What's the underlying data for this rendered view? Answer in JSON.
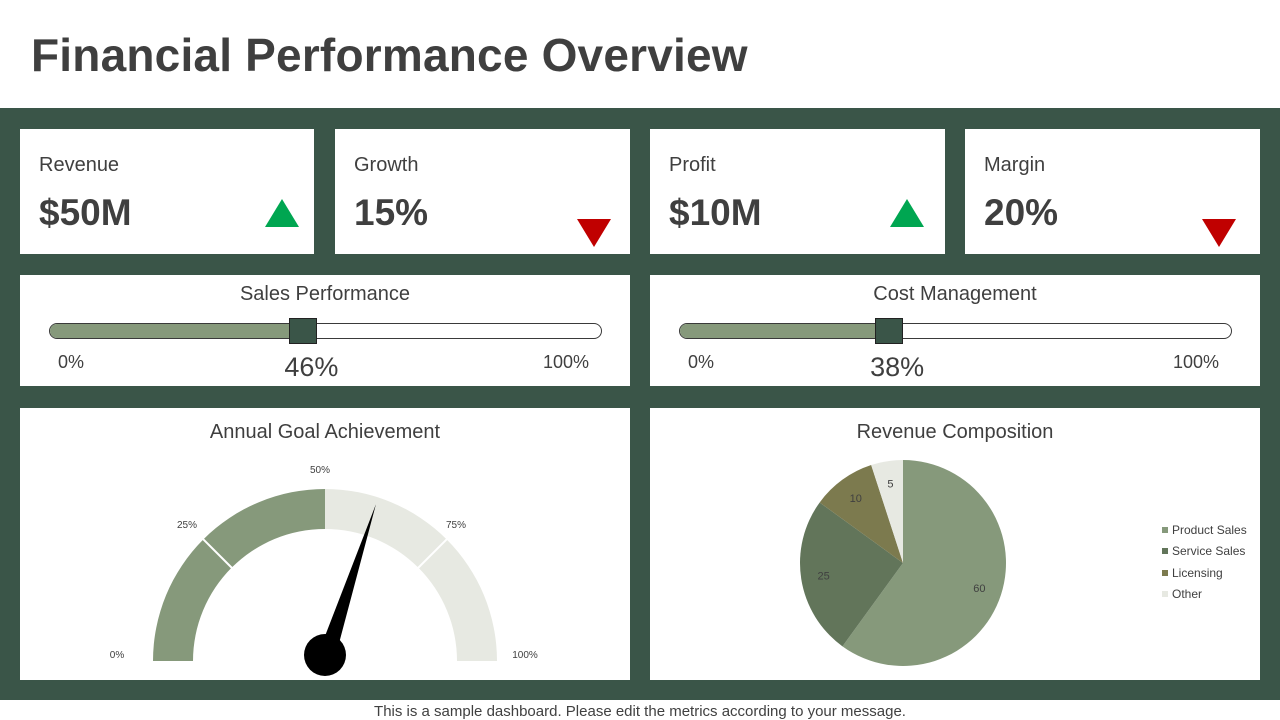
{
  "title": "Financial Performance Overview",
  "kpis": [
    {
      "label": "Revenue",
      "value": "$50M",
      "trend": "up",
      "trend_icon": "triangle-up-icon",
      "trend_color": "#00a651"
    },
    {
      "label": "Growth",
      "value": "15%",
      "trend": "down",
      "trend_icon": "triangle-down-icon",
      "trend_color": "#c00000"
    },
    {
      "label": "Profit",
      "value": "$10M",
      "trend": "up",
      "trend_icon": "triangle-up-icon",
      "trend_color": "#00a651"
    },
    {
      "label": "Margin",
      "value": "20%",
      "trend": "down",
      "trend_icon": "triangle-down-icon",
      "trend_color": "#c00000"
    }
  ],
  "progress": [
    {
      "title": "Sales Performance",
      "percent": 46,
      "value_label": "46%",
      "min_label": "0%",
      "max_label": "100%"
    },
    {
      "title": "Cost Management",
      "percent": 38,
      "value_label": "38%",
      "min_label": "0%",
      "max_label": "100%"
    }
  ],
  "gauge": {
    "title": "Annual Goal Achievement",
    "value_percent": 60,
    "tick_labels": [
      "0%",
      "25%",
      "50%",
      "75%",
      "100%"
    ],
    "colors": {
      "filled": "#86997b",
      "empty": "#e7e9e2",
      "needle": "#000000"
    }
  },
  "chart_data": {
    "type": "pie",
    "title": "Revenue Composition",
    "categories": [
      "Product Sales",
      "Service Sales",
      "Licensing",
      "Other"
    ],
    "values": [
      60,
      25,
      10,
      5
    ],
    "colors": [
      "#86997b",
      "#62755a",
      "#7c7a4e",
      "#e7e9e2"
    ],
    "legend_position": "right"
  },
  "colors": {
    "background": "#3a5548",
    "card": "#ffffff",
    "accent": "#86997b"
  },
  "footer": "This is a sample dashboard. Please edit the metrics according to your message."
}
